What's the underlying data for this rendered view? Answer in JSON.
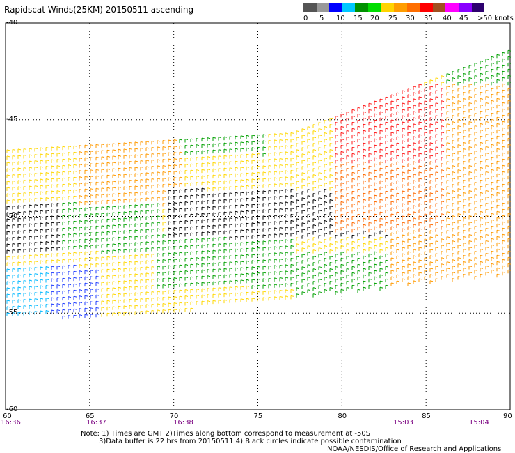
{
  "title": "Rapidscat Winds(25KM) 20150511 ascending",
  "legend": {
    "colors": [
      "#555555",
      "#999999",
      "#0000ff",
      "#00c8ff",
      "#009100",
      "#00dd00",
      "#ffd400",
      "#ff9d00",
      "#ff6e00",
      "#ff0000",
      "#a05020",
      "#ff00ff",
      "#8a00ff",
      "#2d006e"
    ],
    "labels": [
      "0",
      "5",
      "10",
      "15",
      "20",
      "25",
      "30",
      "35",
      "40",
      "45",
      ">50 knots"
    ]
  },
  "axes": {
    "lat_labels": [
      "-40",
      "-45",
      "-50",
      "-55",
      "-60"
    ],
    "lon_labels": [
      "60",
      "65",
      "70",
      "75",
      "80",
      "85",
      "90"
    ],
    "time_labels": [
      "16:36",
      "16:37",
      "16:38",
      "15:03",
      "15:04"
    ]
  },
  "chart_data": {
    "type": "map",
    "title": "Rapidscat Winds(25KM) 20150511 ascending",
    "xlim": [
      60,
      90
    ],
    "ylim": [
      -60,
      -40
    ],
    "grid": true,
    "legend_placement": "top-right",
    "legend_units": "knots",
    "series": [
      {
        "name": "wind barbs",
        "note": "swath of wind barbs colored by speed"
      }
    ]
  },
  "notes": {
    "line1": "Note: 1) Times are GMT 2)Times along bottom correspond to measurement at -50S",
    "line2": "3)Data buffer is 22 hrs from 20150511 4) Black circles indicate possible contamination",
    "credit": "NOAA/NESDIS/Office of Research and Applications"
  }
}
